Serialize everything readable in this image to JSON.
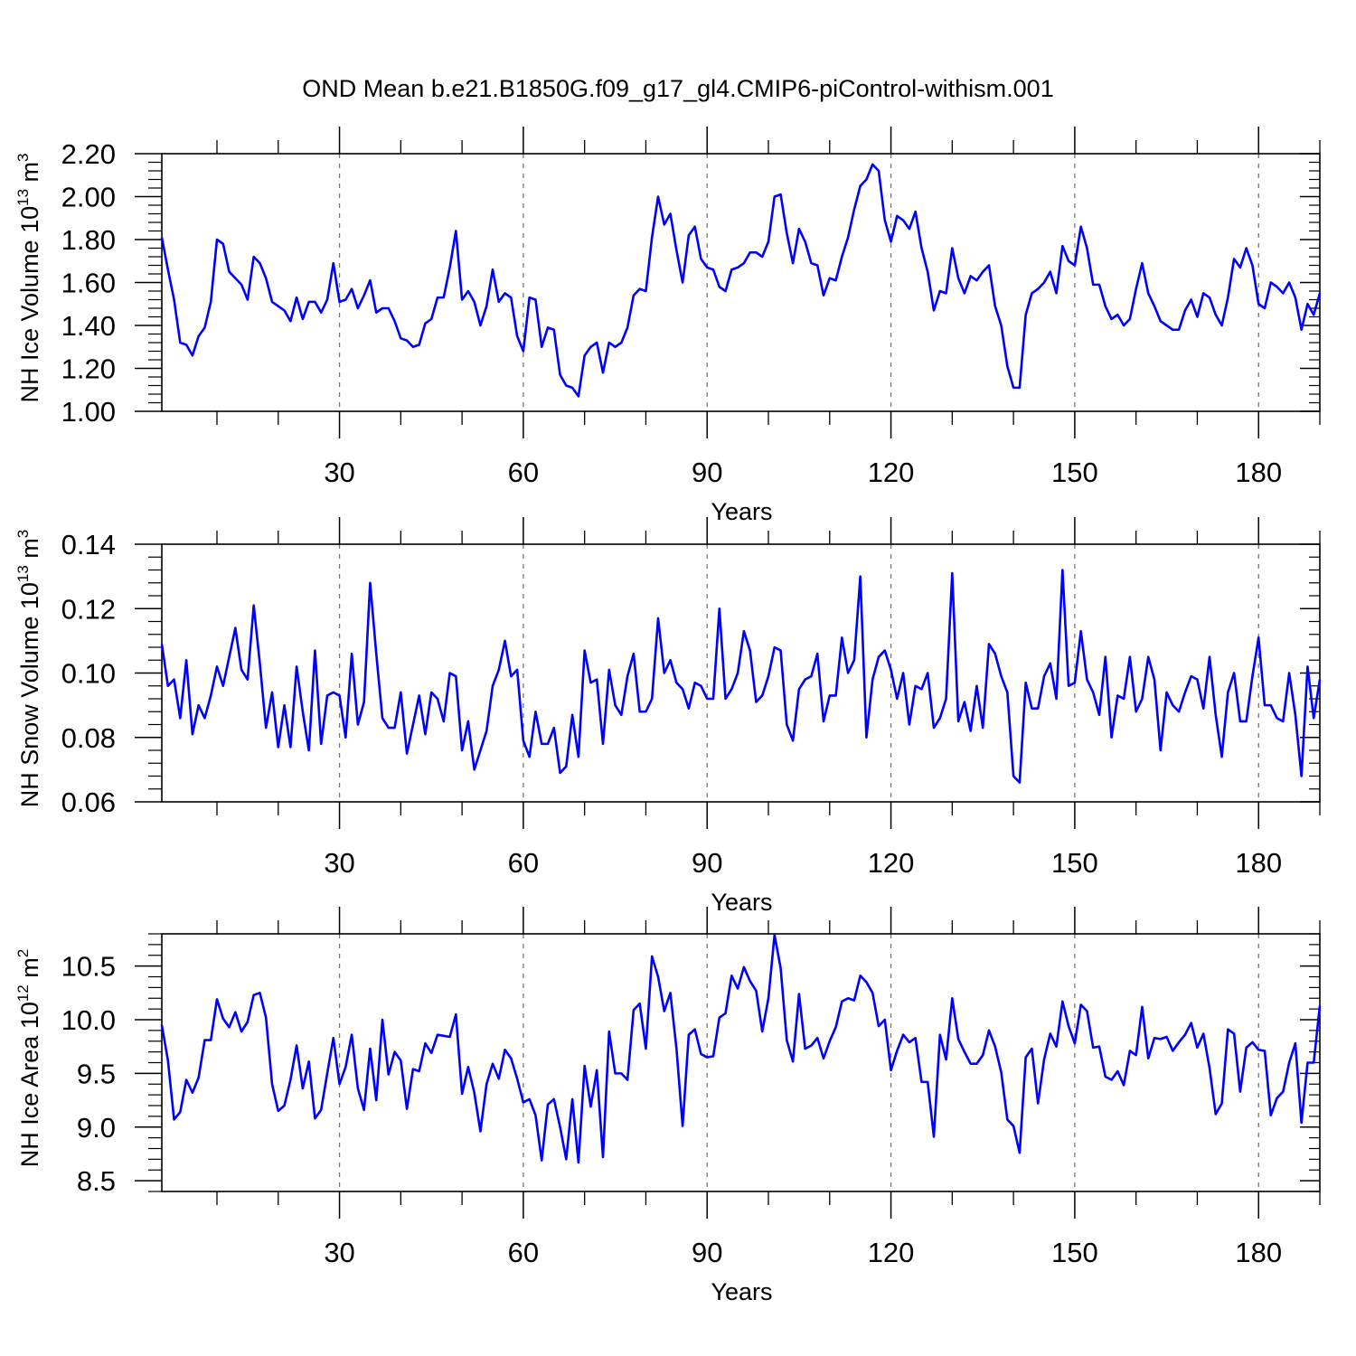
{
  "title": "OND Mean b.e21.B1850G.f09_g17_gl4.CMIP6-piControl-withism.001",
  "chart_data": [
    {
      "type": "line",
      "title": "OND Mean b.e21.B1850G.f09_g17_gl4.CMIP6-piControl-withism.001",
      "xlabel": "Years",
      "ylabel": {
        "prefix": "NH Ice Volume 10",
        "exp": "13",
        "unit": " m",
        "unit_exp": "3"
      },
      "xlim": [
        1,
        190
      ],
      "ylim": [
        1.0,
        2.2
      ],
      "xticks": [
        30,
        60,
        90,
        120,
        150,
        180
      ],
      "xtick_labels": [
        "30",
        "60",
        "90",
        "120",
        "150",
        "180"
      ],
      "yticks": [
        1.0,
        1.2,
        1.4,
        1.6,
        1.8,
        2.0,
        2.2
      ],
      "ytick_labels": [
        "1.00",
        "1.20",
        "1.40",
        "1.60",
        "1.80",
        "2.00",
        "2.20"
      ],
      "grid": "dashed vertical at x ticks",
      "series": [
        {
          "name": "NH Ice Volume",
          "color": "#0000ff",
          "x_start": 1,
          "values": [
            1.81,
            1.66,
            1.52,
            1.32,
            1.31,
            1.26,
            1.35,
            1.39,
            1.51,
            1.8,
            1.78,
            1.65,
            1.62,
            1.59,
            1.52,
            1.72,
            1.69,
            1.62,
            1.51,
            1.49,
            1.47,
            1.42,
            1.53,
            1.43,
            1.51,
            1.51,
            1.46,
            1.52,
            1.69,
            1.51,
            1.52,
            1.57,
            1.48,
            1.54,
            1.61,
            1.46,
            1.48,
            1.48,
            1.42,
            1.34,
            1.33,
            1.3,
            1.31,
            1.41,
            1.43,
            1.53,
            1.53,
            1.67,
            1.84,
            1.52,
            1.56,
            1.51,
            1.4,
            1.49,
            1.66,
            1.51,
            1.55,
            1.53,
            1.35,
            1.28,
            1.53,
            1.52,
            1.3,
            1.39,
            1.38,
            1.17,
            1.12,
            1.11,
            1.07,
            1.26,
            1.3,
            1.32,
            1.18,
            1.32,
            1.3,
            1.32,
            1.39,
            1.54,
            1.57,
            1.56,
            1.81,
            2.0,
            1.87,
            1.92,
            1.75,
            1.6,
            1.82,
            1.86,
            1.71,
            1.67,
            1.66,
            1.58,
            1.56,
            1.66,
            1.67,
            1.69,
            1.74,
            1.74,
            1.72,
            1.79,
            2.0,
            2.01,
            1.83,
            1.69,
            1.85,
            1.79,
            1.69,
            1.68,
            1.54,
            1.62,
            1.61,
            1.72,
            1.81,
            1.94,
            2.05,
            2.08,
            2.15,
            2.12,
            1.89,
            1.79,
            1.91,
            1.89,
            1.85,
            1.93,
            1.76,
            1.65,
            1.47,
            1.56,
            1.55,
            1.76,
            1.62,
            1.55,
            1.63,
            1.61,
            1.65,
            1.68,
            1.49,
            1.4,
            1.21,
            1.11,
            1.11,
            1.45,
            1.55,
            1.57,
            1.6,
            1.65,
            1.55,
            1.77,
            1.7,
            1.68,
            1.86,
            1.76,
            1.59,
            1.59,
            1.49,
            1.43,
            1.45,
            1.4,
            1.43,
            1.57,
            1.69,
            1.55,
            1.49,
            1.42,
            1.4,
            1.38,
            1.38,
            1.47,
            1.52,
            1.44,
            1.55,
            1.53,
            1.45,
            1.4,
            1.53,
            1.71,
            1.67,
            1.76,
            1.68,
            1.5,
            1.48,
            1.6,
            1.58,
            1.55,
            1.6,
            1.53,
            1.38,
            1.5,
            1.45,
            1.55
          ]
        }
      ]
    },
    {
      "type": "line",
      "xlabel": "Years",
      "ylabel": {
        "prefix": "NH Snow Volume 10",
        "exp": "13",
        "unit": " m",
        "unit_exp": "3"
      },
      "xlim": [
        1,
        190
      ],
      "ylim": [
        0.06,
        0.14
      ],
      "xticks": [
        30,
        60,
        90,
        120,
        150,
        180
      ],
      "xtick_labels": [
        "30",
        "60",
        "90",
        "120",
        "150",
        "180"
      ],
      "yticks": [
        0.06,
        0.08,
        0.1,
        0.12,
        0.14
      ],
      "ytick_labels": [
        "0.06",
        "0.08",
        "0.10",
        "0.12",
        "0.14"
      ],
      "grid": "dashed vertical at x ticks",
      "series": [
        {
          "name": "NH Snow Volume",
          "color": "#0000ff",
          "x_start": 1,
          "values": [
            0.109,
            0.096,
            0.098,
            0.086,
            0.104,
            0.081,
            0.09,
            0.086,
            0.093,
            0.102,
            0.096,
            0.105,
            0.114,
            0.101,
            0.098,
            0.121,
            0.103,
            0.083,
            0.094,
            0.077,
            0.09,
            0.077,
            0.102,
            0.088,
            0.076,
            0.107,
            0.078,
            0.093,
            0.094,
            0.093,
            0.08,
            0.106,
            0.084,
            0.091,
            0.128,
            0.106,
            0.086,
            0.083,
            0.083,
            0.094,
            0.075,
            0.084,
            0.093,
            0.081,
            0.094,
            0.092,
            0.085,
            0.1,
            0.099,
            0.076,
            0.085,
            0.07,
            0.076,
            0.082,
            0.096,
            0.101,
            0.11,
            0.099,
            0.101,
            0.079,
            0.074,
            0.088,
            0.078,
            0.078,
            0.083,
            0.069,
            0.071,
            0.087,
            0.074,
            0.107,
            0.097,
            0.098,
            0.078,
            0.101,
            0.09,
            0.087,
            0.099,
            0.106,
            0.088,
            0.088,
            0.092,
            0.117,
            0.1,
            0.104,
            0.097,
            0.095,
            0.089,
            0.097,
            0.096,
            0.092,
            0.092,
            0.12,
            0.092,
            0.095,
            0.1,
            0.113,
            0.107,
            0.091,
            0.093,
            0.099,
            0.108,
            0.107,
            0.084,
            0.079,
            0.095,
            0.098,
            0.099,
            0.106,
            0.085,
            0.093,
            0.093,
            0.111,
            0.1,
            0.104,
            0.13,
            0.08,
            0.098,
            0.105,
            0.107,
            0.101,
            0.092,
            0.1,
            0.084,
            0.096,
            0.095,
            0.1,
            0.083,
            0.086,
            0.092,
            0.131,
            0.085,
            0.091,
            0.082,
            0.096,
            0.083,
            0.109,
            0.106,
            0.099,
            0.094,
            0.068,
            0.066,
            0.097,
            0.089,
            0.089,
            0.099,
            0.103,
            0.092,
            0.132,
            0.096,
            0.097,
            0.113,
            0.098,
            0.094,
            0.087,
            0.105,
            0.08,
            0.093,
            0.092,
            0.105,
            0.088,
            0.092,
            0.105,
            0.098,
            0.076,
            0.094,
            0.09,
            0.088,
            0.094,
            0.099,
            0.098,
            0.089,
            0.105,
            0.087,
            0.074,
            0.094,
            0.1,
            0.085,
            0.085,
            0.099,
            0.111,
            0.09,
            0.09,
            0.086,
            0.085,
            0.1,
            0.087,
            0.068,
            0.102,
            0.086,
            0.098
          ]
        }
      ]
    },
    {
      "type": "line",
      "xlabel": "Years",
      "ylabel": {
        "prefix": "NH Ice Area 10",
        "exp": "12",
        "unit": " m",
        "unit_exp": "2"
      },
      "xlim": [
        1,
        190
      ],
      "ylim": [
        8.4,
        10.8
      ],
      "xticks": [
        30,
        60,
        90,
        120,
        150,
        180
      ],
      "xtick_labels": [
        "30",
        "60",
        "90",
        "120",
        "150",
        "180"
      ],
      "yticks": [
        8.5,
        9.0,
        9.5,
        10.0,
        10.5
      ],
      "ytick_labels": [
        "8.5",
        "9.0",
        "9.5",
        "10.0",
        "10.5"
      ],
      "grid": "dashed vertical at x ticks",
      "series": [
        {
          "name": "NH Ice Area",
          "color": "#0000ff",
          "x_start": 1,
          "values": [
            9.95,
            9.62,
            9.07,
            9.14,
            9.44,
            9.32,
            9.46,
            9.81,
            9.81,
            10.19,
            10.01,
            9.93,
            10.07,
            9.89,
            9.98,
            10.23,
            10.25,
            10.02,
            9.4,
            9.15,
            9.2,
            9.44,
            9.76,
            9.36,
            9.61,
            9.08,
            9.16,
            9.5,
            9.83,
            9.4,
            9.56,
            9.86,
            9.36,
            9.16,
            9.73,
            9.25,
            10.0,
            9.49,
            9.7,
            9.62,
            9.17,
            9.54,
            9.52,
            9.78,
            9.69,
            9.86,
            9.85,
            9.84,
            10.05,
            9.31,
            9.56,
            9.32,
            8.96,
            9.4,
            9.59,
            9.45,
            9.72,
            9.64,
            9.45,
            9.23,
            9.26,
            9.11,
            8.69,
            9.21,
            9.26,
            9.0,
            8.7,
            9.26,
            8.67,
            9.57,
            9.19,
            9.53,
            8.72,
            9.89,
            9.5,
            9.5,
            9.44,
            10.09,
            10.15,
            9.73,
            10.59,
            10.4,
            10.08,
            10.25,
            9.73,
            9.01,
            9.86,
            9.91,
            9.68,
            9.65,
            9.66,
            10.02,
            10.06,
            10.41,
            10.29,
            10.49,
            10.36,
            10.27,
            9.89,
            10.2,
            10.79,
            10.48,
            9.81,
            9.61,
            10.24,
            9.73,
            9.76,
            9.83,
            9.64,
            9.8,
            9.93,
            10.17,
            10.2,
            10.18,
            10.41,
            10.35,
            10.25,
            9.94,
            10.0,
            9.53,
            9.71,
            9.86,
            9.79,
            9.83,
            9.42,
            9.42,
            8.91,
            9.86,
            9.63,
            10.2,
            9.82,
            9.7,
            9.59,
            9.59,
            9.67,
            9.9,
            9.75,
            9.51,
            9.07,
            9.01,
            8.76,
            9.65,
            9.73,
            9.22,
            9.63,
            9.87,
            9.75,
            10.17,
            9.94,
            9.78,
            10.14,
            10.08,
            9.74,
            9.75,
            9.47,
            9.44,
            9.52,
            9.39,
            9.71,
            9.67,
            10.12,
            9.64,
            9.83,
            9.82,
            9.84,
            9.71,
            9.79,
            9.86,
            9.97,
            9.74,
            9.87,
            9.55,
            9.12,
            9.22,
            9.91,
            9.87,
            9.33,
            9.74,
            9.79,
            9.72,
            9.71,
            9.11,
            9.27,
            9.33,
            9.6,
            9.78,
            9.04,
            9.6,
            9.6,
            10.13
          ]
        }
      ]
    }
  ]
}
